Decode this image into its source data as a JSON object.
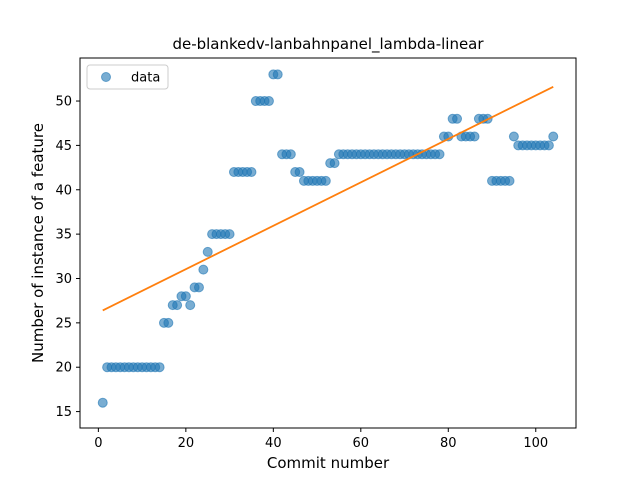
{
  "chart_data": {
    "type": "scatter",
    "title": "de-blankedv-lanbahnpanel_lambda-linear",
    "xlabel": "Commit number",
    "ylabel": "Number of instance of a feature",
    "xlim": [
      -4.2,
      109.2
    ],
    "ylim": [
      13.15,
      54.85
    ],
    "xticks": [
      0,
      20,
      40,
      60,
      80,
      100
    ],
    "yticks": [
      15,
      20,
      25,
      30,
      35,
      40,
      45,
      50
    ],
    "grid": false,
    "legend": {
      "placement": "top-left",
      "entries": [
        "data"
      ]
    },
    "series": [
      {
        "name": "data",
        "type": "scatter",
        "color": "#1f77b4",
        "x": [
          1,
          2,
          3,
          4,
          5,
          6,
          7,
          8,
          9,
          10,
          11,
          12,
          13,
          14,
          15,
          16,
          17,
          18,
          19,
          20,
          21,
          22,
          23,
          24,
          25,
          26,
          27,
          28,
          29,
          30,
          31,
          32,
          33,
          34,
          35,
          36,
          37,
          38,
          39,
          40,
          41,
          42,
          43,
          44,
          45,
          46,
          47,
          48,
          49,
          50,
          51,
          52,
          53,
          54,
          55,
          56,
          57,
          58,
          59,
          60,
          61,
          62,
          63,
          64,
          65,
          66,
          67,
          68,
          69,
          70,
          71,
          72,
          73,
          74,
          75,
          76,
          77,
          78,
          79,
          80,
          81,
          82,
          83,
          84,
          85,
          86,
          87,
          88,
          89,
          90,
          91,
          92,
          93,
          94,
          95,
          96,
          97,
          98,
          99,
          100,
          101,
          102,
          103,
          104
        ],
        "y": [
          16,
          20,
          20,
          20,
          20,
          20,
          20,
          20,
          20,
          20,
          20,
          20,
          20,
          20,
          25,
          25,
          27,
          27,
          28,
          28,
          27,
          29,
          29,
          31,
          33,
          35,
          35,
          35,
          35,
          35,
          42,
          42,
          42,
          42,
          42,
          50,
          50,
          50,
          50,
          53,
          53,
          44,
          44,
          44,
          42,
          42,
          41,
          41,
          41,
          41,
          41,
          41,
          43,
          43,
          44,
          44,
          44,
          44,
          44,
          44,
          44,
          44,
          44,
          44,
          44,
          44,
          44,
          44,
          44,
          44,
          44,
          44,
          44,
          44,
          44,
          44,
          44,
          44,
          46,
          46,
          48,
          48,
          46,
          46,
          46,
          46,
          48,
          48,
          48,
          41,
          41,
          41,
          41,
          41,
          46,
          45,
          45,
          45,
          45,
          45,
          45,
          45,
          45,
          46
        ]
      },
      {
        "name": "",
        "type": "line",
        "color": "#ff7f0e",
        "x": [
          1,
          104
        ],
        "y": [
          26.4,
          51.6
        ]
      }
    ]
  }
}
